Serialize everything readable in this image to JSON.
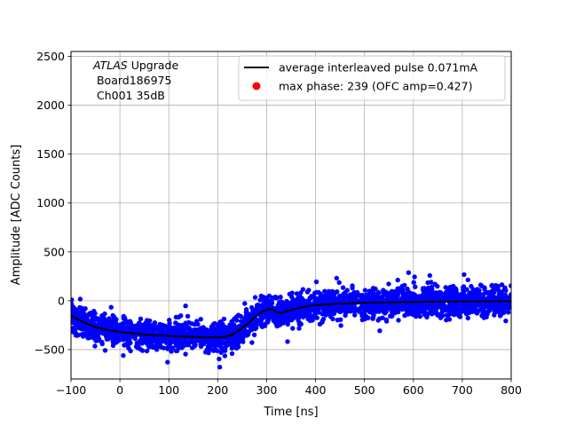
{
  "chart_data": {
    "type": "scatter",
    "title": "",
    "xlabel": "Time [ns]",
    "ylabel": "Amplitude [ADC Counts]",
    "xlim": [
      -100,
      800
    ],
    "ylim": [
      -800,
      2550
    ],
    "xticks": [
      -100,
      0,
      100,
      200,
      300,
      400,
      500,
      600,
      700,
      800
    ],
    "yticks": [
      -500,
      0,
      500,
      1000,
      1500,
      2000,
      2500
    ],
    "grid": true,
    "annotation": {
      "italic": "ATLAS",
      "rest": " Upgrade",
      "line2": " Board186975",
      "line3": " Ch001 35dB"
    },
    "legend": {
      "position": "top-right",
      "entries": [
        {
          "label": "average interleaved pulse 0.071mA",
          "marker": "line",
          "color": "#000000"
        },
        {
          "label": "max phase: 239 (OFC amp=0.427)",
          "marker": "dot",
          "color": "#ff0000"
        }
      ]
    },
    "series": [
      {
        "name": "average interleaved pulse 0.071mA",
        "type": "line",
        "color": "#000000",
        "x": [
          -100,
          -75,
          -50,
          -25,
          0,
          25,
          50,
          75,
          100,
          125,
          150,
          175,
          200,
          215,
          230,
          245,
          260,
          275,
          290,
          300,
          310,
          320,
          330,
          345,
          360,
          380,
          400,
          450,
          500,
          550,
          600,
          650,
          700,
          750,
          800
        ],
        "y": [
          -150,
          -220,
          -270,
          -300,
          -320,
          -330,
          -345,
          -355,
          -360,
          -365,
          -370,
          -375,
          -375,
          -370,
          -345,
          -300,
          -240,
          -170,
          -115,
          -90,
          -85,
          -110,
          -125,
          -100,
          -80,
          -60,
          -45,
          -30,
          -20,
          -15,
          -12,
          -10,
          -8,
          -6,
          -5
        ]
      },
      {
        "name": "samples",
        "type": "scatter",
        "color": "#0000ff",
        "spread": 75,
        "count": 2600
      }
    ]
  }
}
